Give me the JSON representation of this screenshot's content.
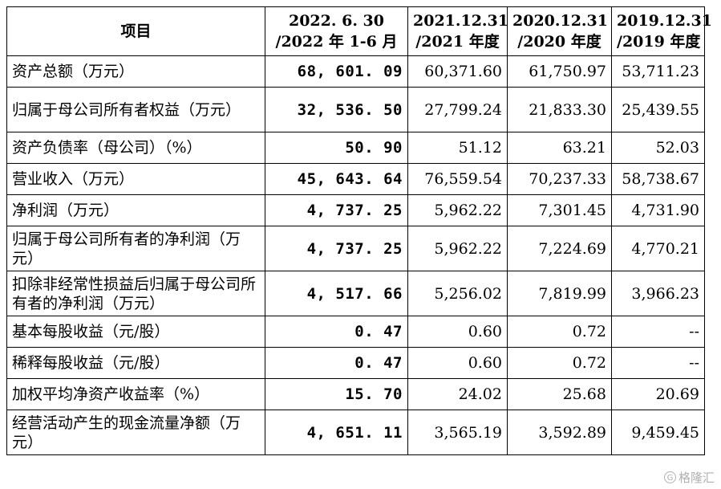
{
  "table": {
    "headers": [
      {
        "line1": "项目",
        "line2": ""
      },
      {
        "line1": "2022. 6. 30",
        "line2": "/2022 年 1-6 月"
      },
      {
        "line1": "2021.12.31",
        "line2": "/2021 年度"
      },
      {
        "line1": "2020.12.31",
        "line2": "/2020 年度"
      },
      {
        "line1": "2019.12.31",
        "line2": "/2019 年度"
      }
    ],
    "rows": [
      {
        "label": "资产总额（万元）",
        "v2022": "68, 601. 09",
        "v2021": "60,371.60",
        "v2020": "61,750.97",
        "v2019": "53,711.23"
      },
      {
        "label": "归属于母公司所有者权益（万元）",
        "v2022": "32, 536. 50",
        "v2021": "27,799.24",
        "v2020": "21,833.30",
        "v2019": "25,439.55"
      },
      {
        "label": "资产负债率（母公司）（%）",
        "v2022": "50. 90",
        "v2021": "51.12",
        "v2020": "63.21",
        "v2019": "52.03"
      },
      {
        "label": "营业收入（万元）",
        "v2022": "45, 643. 64",
        "v2021": "76,559.54",
        "v2020": "70,237.33",
        "v2019": "58,738.67"
      },
      {
        "label": "净利润（万元）",
        "v2022": "4, 737. 25",
        "v2021": "5,962.22",
        "v2020": "7,301.45",
        "v2019": "4,731.90"
      },
      {
        "label": "归属于母公司所有者的净利润（万元）",
        "v2022": "4, 737. 25",
        "v2021": "5,962.22",
        "v2020": "7,224.69",
        "v2019": "4,770.21"
      },
      {
        "label": "扣除非经常性损益后归属于母公司所有者的净利润（万元）",
        "v2022": "4, 517. 66",
        "v2021": "5,256.02",
        "v2020": "7,819.99",
        "v2019": "3,966.23"
      },
      {
        "label": "基本每股收益（元/股）",
        "v2022": "0. 47",
        "v2021": "0.60",
        "v2020": "0.72",
        "v2019": "--"
      },
      {
        "label": "稀释每股收益（元/股）",
        "v2022": "0. 47",
        "v2021": "0.60",
        "v2020": "0.72",
        "v2019": "--"
      },
      {
        "label": "加权平均净资产收益率（%）",
        "v2022": "15. 70",
        "v2021": "24.02",
        "v2020": "25.68",
        "v2019": "20.69"
      },
      {
        "label": "经营活动产生的现金流量净额（万元）",
        "v2022": "4, 651. 11",
        "v2021": "3,565.19",
        "v2020": "3,592.89",
        "v2019": "9,459.45"
      }
    ]
  },
  "watermark": {
    "icon": "gelonghui-logo-icon",
    "text": "格隆汇"
  }
}
